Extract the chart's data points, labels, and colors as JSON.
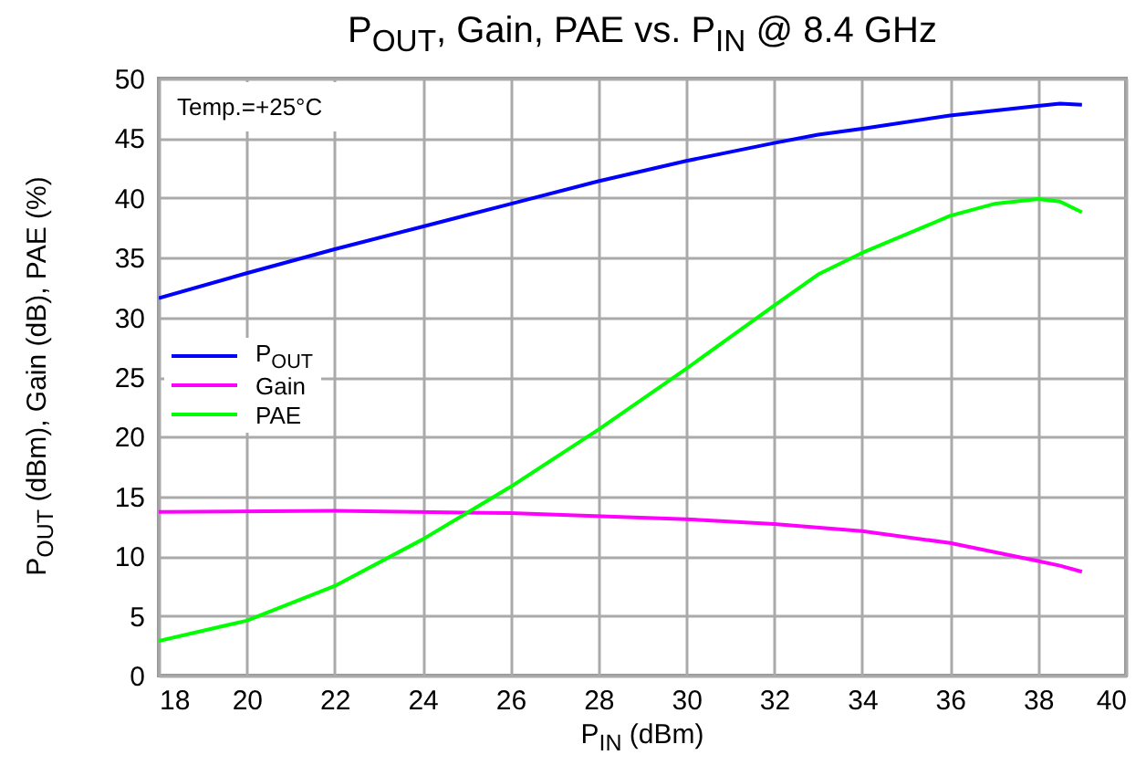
{
  "chart_data": {
    "type": "line",
    "title": "P$_{OUT}$, Gain, PAE vs. P$_{IN}$  @ 8.4 GHz",
    "xlabel": "P$_{IN}$ (dBm)",
    "ylabel": "P$_{OUT}$ (dBm), Gain (dB), PAE (%)",
    "annotations": [
      "Temp.=+25°C"
    ],
    "xlim": [
      18,
      40
    ],
    "xticks": [
      18,
      20,
      22,
      24,
      26,
      28,
      30,
      32,
      34,
      36,
      38,
      40
    ],
    "ylim": [
      0,
      50
    ],
    "yticks": [
      0,
      5,
      10,
      15,
      20,
      25,
      30,
      35,
      40,
      45,
      50
    ],
    "grid": true,
    "legend": "left",
    "line_style": "solid",
    "series": [
      {
        "name": "P$_{OUT}$",
        "color": "#0000ff",
        "x": [
          18,
          20,
          22,
          24,
          26,
          28,
          30,
          32,
          33,
          34,
          36,
          38,
          38.5,
          39
        ],
        "values": [
          31.6,
          33.7,
          35.7,
          37.6,
          39.5,
          41.4,
          43.1,
          44.6,
          45.3,
          45.8,
          46.9,
          47.7,
          47.9,
          47.8
        ]
      },
      {
        "name": "Gain",
        "color": "#ff00ff",
        "x": [
          18,
          22,
          26,
          30,
          32,
          34,
          36,
          38,
          38.5,
          39
        ],
        "values": [
          13.7,
          13.8,
          13.6,
          13.1,
          12.7,
          12.1,
          11.1,
          9.6,
          9.2,
          8.7
        ]
      },
      {
        "name": "PAE",
        "color": "#00ff00",
        "x": [
          18,
          20,
          22,
          24,
          26,
          28,
          30,
          32,
          33,
          34,
          36,
          37,
          38,
          38.5,
          39
        ],
        "values": [
          2.9,
          4.6,
          7.5,
          11.4,
          15.8,
          20.6,
          25.7,
          31,
          33.6,
          35.4,
          38.5,
          39.5,
          39.9,
          39.7,
          38.8
        ]
      }
    ]
  }
}
